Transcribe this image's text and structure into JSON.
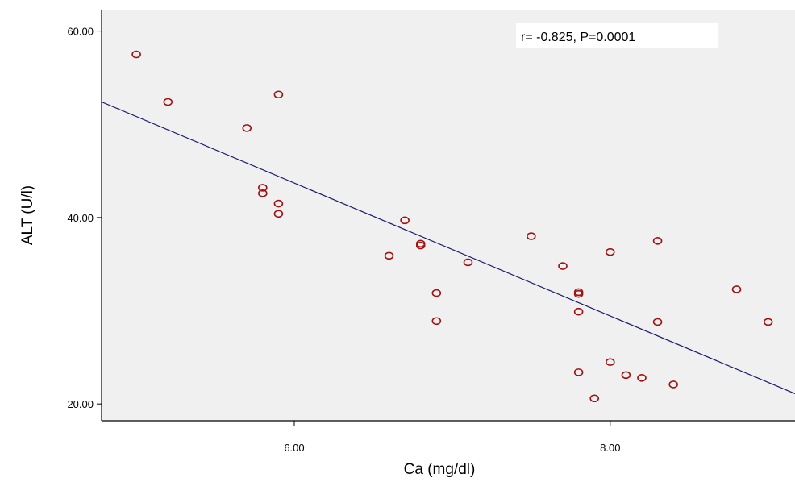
{
  "chart_data": {
    "type": "scatter",
    "title": "",
    "xlabel": "Ca (mg/dl)",
    "ylabel": "ALT (U/l)",
    "xlim": [
      4.78,
      9.17
    ],
    "ylim": [
      18.2,
      62.3
    ],
    "x_ticks": [
      {
        "value": 6.0,
        "label": "6.00"
      },
      {
        "value": 8.0,
        "label": "8.00"
      }
    ],
    "y_ticks": [
      {
        "value": 20.0,
        "label": "20.00"
      },
      {
        "value": 40.0,
        "label": "40.00"
      },
      {
        "value": 60.0,
        "label": "60.00"
      }
    ],
    "grid": false,
    "plot_background": "#f0f0f0",
    "marker_color": "#a01010",
    "line_color": "#1a1a6e",
    "points": [
      {
        "x": 5.0,
        "y": 57.5
      },
      {
        "x": 5.2,
        "y": 52.4
      },
      {
        "x": 5.7,
        "y": 49.6
      },
      {
        "x": 5.9,
        "y": 53.2
      },
      {
        "x": 5.8,
        "y": 43.2
      },
      {
        "x": 5.8,
        "y": 42.6
      },
      {
        "x": 5.9,
        "y": 41.5
      },
      {
        "x": 5.9,
        "y": 40.4
      },
      {
        "x": 6.6,
        "y": 35.9
      },
      {
        "x": 6.7,
        "y": 39.7
      },
      {
        "x": 6.8,
        "y": 37.2
      },
      {
        "x": 6.8,
        "y": 37.0
      },
      {
        "x": 6.9,
        "y": 31.9
      },
      {
        "x": 6.9,
        "y": 28.9
      },
      {
        "x": 7.1,
        "y": 35.2
      },
      {
        "x": 7.5,
        "y": 38.0
      },
      {
        "x": 7.7,
        "y": 34.8
      },
      {
        "x": 7.8,
        "y": 32.0
      },
      {
        "x": 7.8,
        "y": 31.8
      },
      {
        "x": 7.8,
        "y": 29.9
      },
      {
        "x": 7.8,
        "y": 23.4
      },
      {
        "x": 7.9,
        "y": 20.6
      },
      {
        "x": 8.0,
        "y": 36.3
      },
      {
        "x": 8.0,
        "y": 24.5
      },
      {
        "x": 8.1,
        "y": 23.1
      },
      {
        "x": 8.2,
        "y": 22.8
      },
      {
        "x": 8.3,
        "y": 37.5
      },
      {
        "x": 8.3,
        "y": 28.8
      },
      {
        "x": 8.4,
        "y": 22.1
      },
      {
        "x": 8.8,
        "y": 32.3
      },
      {
        "x": 9.0,
        "y": 28.8
      }
    ],
    "fit_line": {
      "x": [
        4.78,
        9.17
      ],
      "y": [
        52.4,
        21.1
      ]
    },
    "annotation": "r= -0.825,  P=0.0001"
  }
}
